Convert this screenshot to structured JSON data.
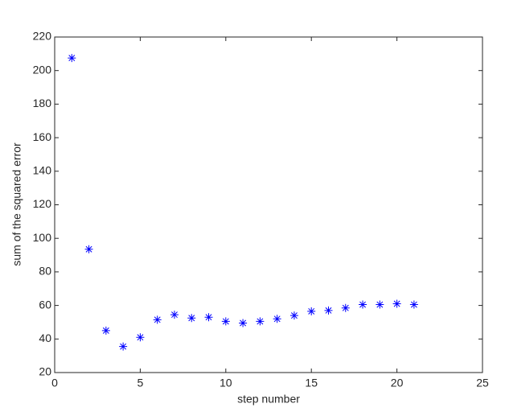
{
  "chart_data": {
    "type": "scatter",
    "x_label": "step number",
    "y_label": "sum of the squared error",
    "x": [
      1,
      2,
      3,
      4,
      5,
      6,
      7,
      8,
      9,
      10,
      11,
      12,
      13,
      14,
      15,
      16,
      17,
      18,
      19,
      20,
      21
    ],
    "values": [
      207.5,
      93.5,
      45,
      35.5,
      41,
      51.5,
      54.5,
      52.5,
      53,
      50.5,
      49.5,
      50.5,
      52,
      54,
      56.5,
      57,
      58.5,
      60.5,
      60.5,
      61,
      60.5
    ],
    "color": "#0000ff",
    "marker": "star",
    "xlim": [
      0,
      25
    ],
    "xticks": [
      0,
      5,
      10,
      15,
      20,
      25
    ],
    "ylim": [
      20,
      220
    ],
    "yticks": [
      20,
      40,
      60,
      80,
      100,
      120,
      140,
      160,
      180,
      200,
      220
    ],
    "grid": false
  }
}
